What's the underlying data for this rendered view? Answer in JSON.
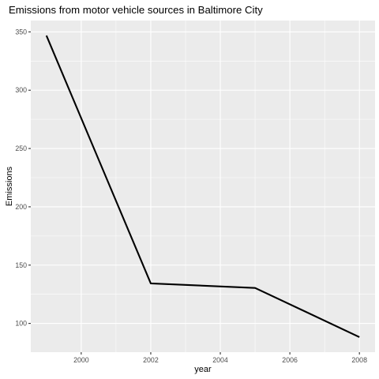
{
  "chart_data": {
    "type": "line",
    "title": "Emissions from motor vehicle sources in Baltimore City",
    "xlabel": "year",
    "ylabel": "Emissions",
    "x": [
      1999,
      2002,
      2005,
      2008
    ],
    "y": [
      346.82,
      134.31,
      130.43,
      88.28
    ],
    "xlim": [
      1998.55,
      2008.45
    ],
    "ylim": [
      75.35,
      359.75
    ],
    "xticks": [
      2000,
      2002,
      2004,
      2006,
      2008
    ],
    "xtick_labels": [
      "2000",
      "2002",
      "2004",
      "2006",
      "2008"
    ],
    "yticks": [
      100,
      150,
      200,
      250,
      300,
      350
    ],
    "ytick_labels": [
      "100",
      "150",
      "200",
      "250",
      "300",
      "350"
    ],
    "grid": true,
    "legend": "none",
    "colors": {
      "panel": "#ebebeb",
      "grid_major": "#ffffff",
      "line": "#000000",
      "tick_text": "#4d4d4d"
    }
  }
}
